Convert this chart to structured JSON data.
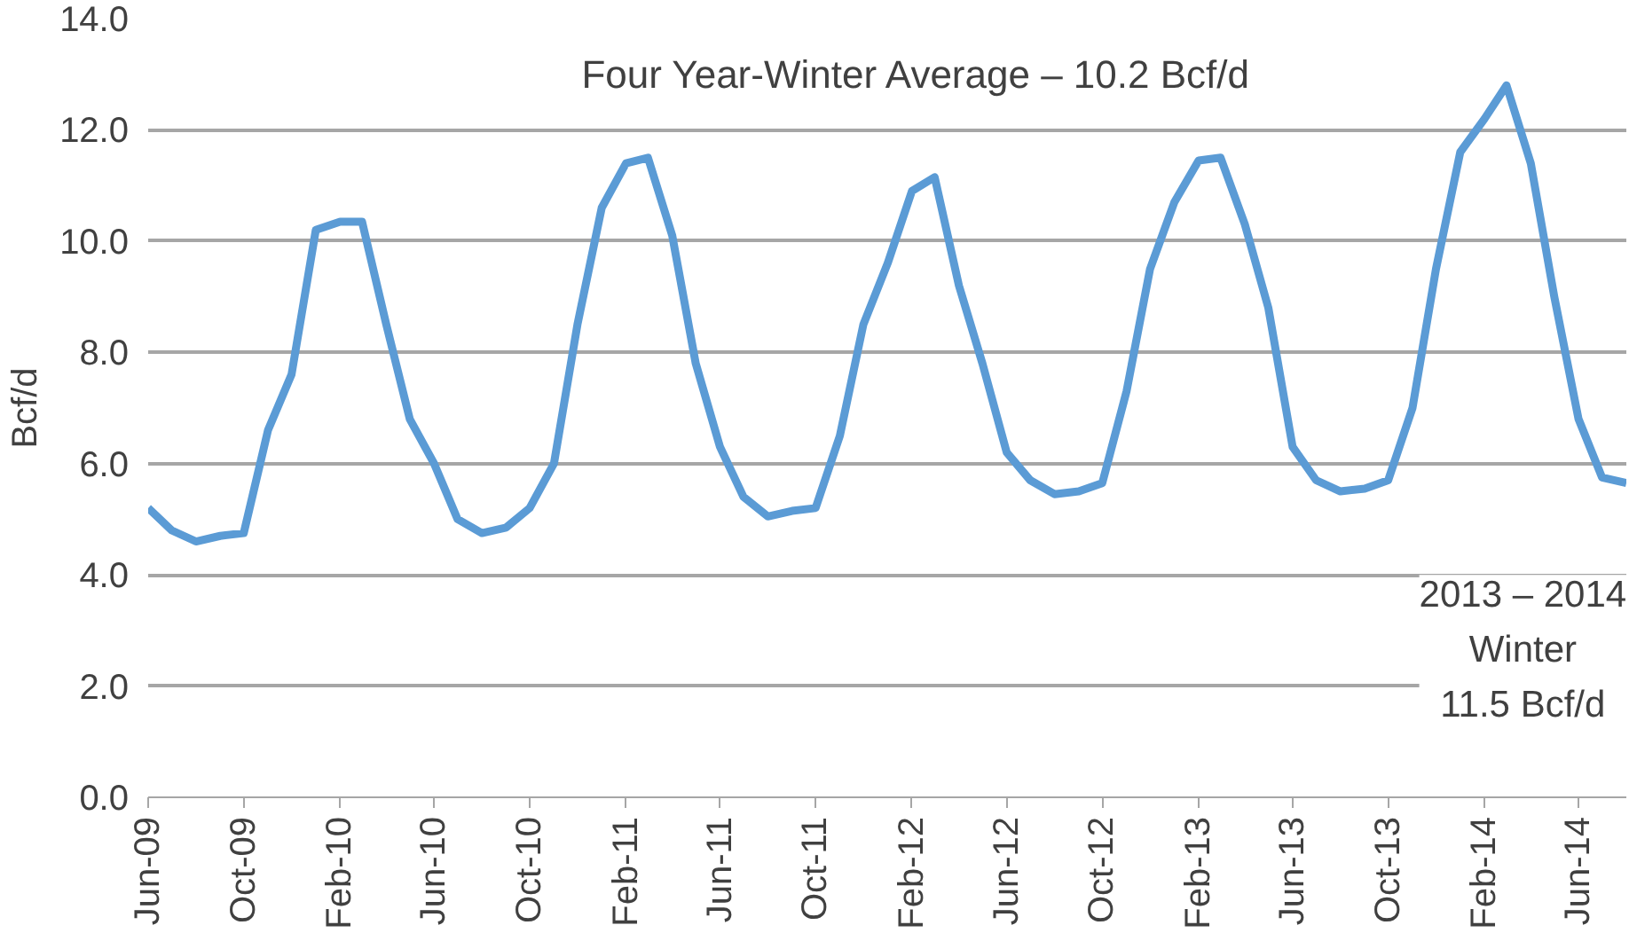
{
  "chart_data": {
    "type": "line",
    "ylabel": "Bcf/d",
    "x": [
      "2009-06",
      "2009-07",
      "2009-08",
      "2009-09",
      "2009-10",
      "2009-11",
      "2009-12",
      "2010-01",
      "2010-02",
      "2010-03",
      "2010-04",
      "2010-05",
      "2010-06",
      "2010-07",
      "2010-08",
      "2010-09",
      "2010-10",
      "2010-11",
      "2010-12",
      "2011-01",
      "2011-02",
      "2011-03",
      "2011-04",
      "2011-05",
      "2011-06",
      "2011-07",
      "2011-08",
      "2011-09",
      "2011-10",
      "2011-11",
      "2011-12",
      "2012-01",
      "2012-02",
      "2012-03",
      "2012-04",
      "2012-05",
      "2012-06",
      "2012-07",
      "2012-08",
      "2012-09",
      "2012-10",
      "2012-11",
      "2012-12",
      "2013-01",
      "2013-02",
      "2013-03",
      "2013-04",
      "2013-05",
      "2013-06",
      "2013-07",
      "2013-08",
      "2013-09",
      "2013-10",
      "2013-11",
      "2013-12",
      "2014-01",
      "2014-02",
      "2014-03",
      "2014-04",
      "2014-05",
      "2014-06",
      "2014-07",
      "2014-08"
    ],
    "series": [
      {
        "color": "#5b9bd5",
        "values": [
          5.2,
          4.8,
          4.6,
          4.7,
          4.75,
          6.6,
          7.6,
          10.2,
          10.35,
          10.35,
          8.5,
          6.8,
          6.0,
          5.0,
          4.75,
          4.85,
          5.2,
          6.0,
          8.5,
          10.6,
          11.4,
          11.5,
          10.1,
          7.8,
          6.3,
          5.4,
          5.05,
          5.15,
          5.2,
          6.5,
          8.5,
          9.6,
          10.9,
          11.15,
          9.2,
          7.8,
          6.2,
          5.7,
          5.45,
          5.5,
          5.65,
          7.3,
          9.5,
          10.7,
          11.45,
          11.5,
          10.3,
          8.8,
          6.3,
          5.7,
          5.5,
          5.55,
          5.7,
          7.0,
          9.5,
          11.6,
          12.2,
          12.8,
          11.4,
          9.0,
          6.8,
          5.75,
          5.65
        ]
      }
    ],
    "ylim": [
      0,
      14
    ],
    "yticks": [
      {
        "value": 0,
        "label": "0.0"
      },
      {
        "value": 2,
        "label": "2.0"
      },
      {
        "value": 4,
        "label": "4.0"
      },
      {
        "value": 6,
        "label": "6.0"
      },
      {
        "value": 8,
        "label": "8.0"
      },
      {
        "value": 10,
        "label": "10.0"
      },
      {
        "value": 12,
        "label": "12.0"
      },
      {
        "value": 14,
        "label": "14.0"
      }
    ],
    "xlim": [
      "2009-06",
      "2014-08"
    ],
    "xticks": [
      {
        "value": "2009-06",
        "label": "Jun-09"
      },
      {
        "value": "2009-10",
        "label": "Oct-09"
      },
      {
        "value": "2010-02",
        "label": "Feb-10"
      },
      {
        "value": "2010-06",
        "label": "Jun-10"
      },
      {
        "value": "2010-10",
        "label": "Oct-10"
      },
      {
        "value": "2011-02",
        "label": "Feb-11"
      },
      {
        "value": "2011-06",
        "label": "Jun-11"
      },
      {
        "value": "2011-10",
        "label": "Oct-11"
      },
      {
        "value": "2012-02",
        "label": "Feb-12"
      },
      {
        "value": "2012-06",
        "label": "Jun-12"
      },
      {
        "value": "2012-10",
        "label": "Oct-12"
      },
      {
        "value": "2013-02",
        "label": "Feb-13"
      },
      {
        "value": "2013-06",
        "label": "Jun-13"
      },
      {
        "value": "2013-10",
        "label": "Oct-13"
      },
      {
        "value": "2014-02",
        "label": "Feb-14"
      },
      {
        "value": "2014-06",
        "label": "Jun-14"
      }
    ],
    "grid": "y",
    "marker": "none",
    "line_style": "solid",
    "annotations": [
      "Four Year-Winter Average – 10.2 Bcf/d",
      "2013 – 2014\nWinter\n11.5 Bcf/d"
    ]
  }
}
